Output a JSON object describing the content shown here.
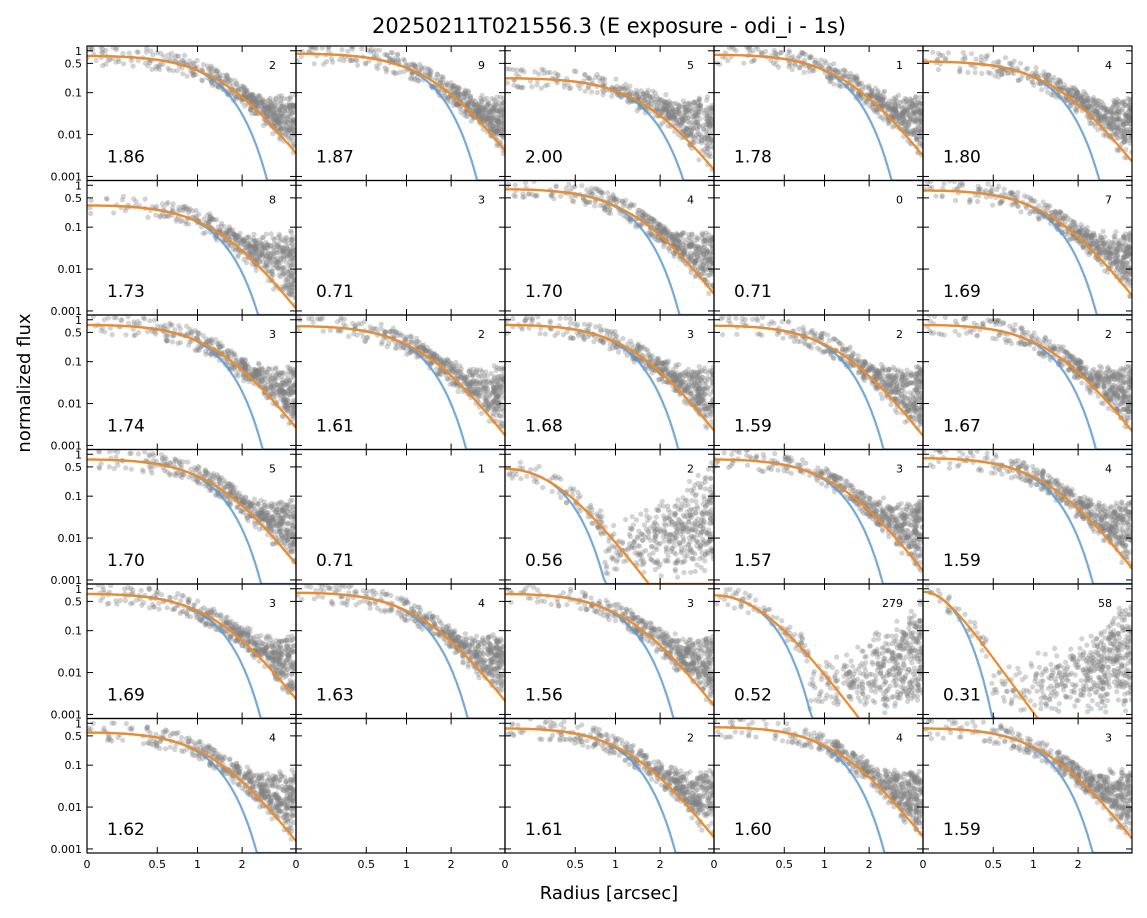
{
  "chart_data": {
    "type": "scatter",
    "title": "20250211T021556.3 (E exposure - odi_i - 1s)",
    "xlabel": "Radius [arcsec]",
    "ylabel": "normalized flux",
    "y_scale": "log",
    "x_scale": "asinh-like",
    "xlim": [
      0,
      4.5
    ],
    "ylim": [
      0.0008,
      1.3
    ],
    "x_ticks": [
      {
        "value": 0,
        "label": "0"
      },
      {
        "value": 0.5,
        "label": "0.5"
      },
      {
        "value": 1,
        "label": "1"
      },
      {
        "value": 2,
        "label": "2"
      }
    ],
    "y_ticks": [
      {
        "value": 1,
        "label": "1"
      },
      {
        "value": 0.5,
        "label": "0.5"
      },
      {
        "value": 0.1,
        "label": "0.1"
      },
      {
        "value": 0.01,
        "label": "0.01"
      },
      {
        "value": 0.001,
        "label": "0.001"
      }
    ],
    "series_colors": {
      "points": "#808080",
      "blue_fit": "#5b9bd5",
      "orange_fit": "#f08a24"
    },
    "grid": false,
    "panels": [
      {
        "row": 0,
        "col": 0,
        "fwhm": "1.86",
        "count": "2",
        "empty": false,
        "y0": 0.75
      },
      {
        "row": 0,
        "col": 1,
        "fwhm": "1.87",
        "count": "9",
        "empty": false,
        "y0": 0.85
      },
      {
        "row": 0,
        "col": 2,
        "fwhm": "2.00",
        "count": "5",
        "empty": false,
        "y0": 0.22
      },
      {
        "row": 0,
        "col": 3,
        "fwhm": "1.78",
        "count": "1",
        "empty": false,
        "y0": 0.8
      },
      {
        "row": 0,
        "col": 4,
        "fwhm": "1.80",
        "count": "4",
        "empty": false,
        "y0": 0.55
      },
      {
        "row": 1,
        "col": 0,
        "fwhm": "1.73",
        "count": "8",
        "empty": false,
        "y0": 0.33
      },
      {
        "row": 1,
        "col": 1,
        "fwhm": "0.71",
        "count": "3",
        "empty": true,
        "y0": 0
      },
      {
        "row": 1,
        "col": 2,
        "fwhm": "1.70",
        "count": "4",
        "empty": false,
        "y0": 0.8
      },
      {
        "row": 1,
        "col": 3,
        "fwhm": "0.71",
        "count": "0",
        "empty": true,
        "y0": 0
      },
      {
        "row": 1,
        "col": 4,
        "fwhm": "1.69",
        "count": "7",
        "empty": false,
        "y0": 0.75
      },
      {
        "row": 2,
        "col": 0,
        "fwhm": "1.74",
        "count": "3",
        "empty": false,
        "y0": 0.75
      },
      {
        "row": 2,
        "col": 1,
        "fwhm": "1.61",
        "count": "2",
        "empty": false,
        "y0": 0.7
      },
      {
        "row": 2,
        "col": 2,
        "fwhm": "1.68",
        "count": "3",
        "empty": false,
        "y0": 0.75
      },
      {
        "row": 2,
        "col": 3,
        "fwhm": "1.59",
        "count": "2",
        "empty": false,
        "y0": 0.72
      },
      {
        "row": 2,
        "col": 4,
        "fwhm": "1.67",
        "count": "2",
        "empty": false,
        "y0": 0.75
      },
      {
        "row": 3,
        "col": 0,
        "fwhm": "1.70",
        "count": "5",
        "empty": false,
        "y0": 0.75
      },
      {
        "row": 3,
        "col": 1,
        "fwhm": "0.71",
        "count": "1",
        "empty": true,
        "y0": 0
      },
      {
        "row": 3,
        "col": 2,
        "fwhm": "0.56",
        "count": "2",
        "empty": false,
        "y0": 0.45
      },
      {
        "row": 3,
        "col": 3,
        "fwhm": "1.57",
        "count": "3",
        "empty": false,
        "y0": 0.75
      },
      {
        "row": 3,
        "col": 4,
        "fwhm": "1.59",
        "count": "4",
        "empty": false,
        "y0": 0.8
      },
      {
        "row": 4,
        "col": 0,
        "fwhm": "1.69",
        "count": "3",
        "empty": false,
        "y0": 0.75
      },
      {
        "row": 4,
        "col": 1,
        "fwhm": "1.63",
        "count": "4",
        "empty": false,
        "y0": 0.8
      },
      {
        "row": 4,
        "col": 2,
        "fwhm": "1.56",
        "count": "3",
        "empty": false,
        "y0": 0.75
      },
      {
        "row": 4,
        "col": 3,
        "fwhm": "0.52",
        "count": "279",
        "empty": false,
        "y0": 0.7
      },
      {
        "row": 4,
        "col": 4,
        "fwhm": "0.31",
        "count": "58",
        "empty": false,
        "y0": 0.85
      },
      {
        "row": 5,
        "col": 0,
        "fwhm": "1.62",
        "count": "4",
        "empty": false,
        "y0": 0.6
      },
      {
        "row": 5,
        "col": 1,
        "fwhm": "",
        "count": "",
        "empty": true,
        "y0": 0
      },
      {
        "row": 5,
        "col": 2,
        "fwhm": "1.61",
        "count": "2",
        "empty": false,
        "y0": 0.75
      },
      {
        "row": 5,
        "col": 3,
        "fwhm": "1.60",
        "count": "4",
        "empty": false,
        "y0": 0.8
      },
      {
        "row": 5,
        "col": 4,
        "fwhm": "1.59",
        "count": "3",
        "empty": false,
        "y0": 0.75
      }
    ]
  }
}
